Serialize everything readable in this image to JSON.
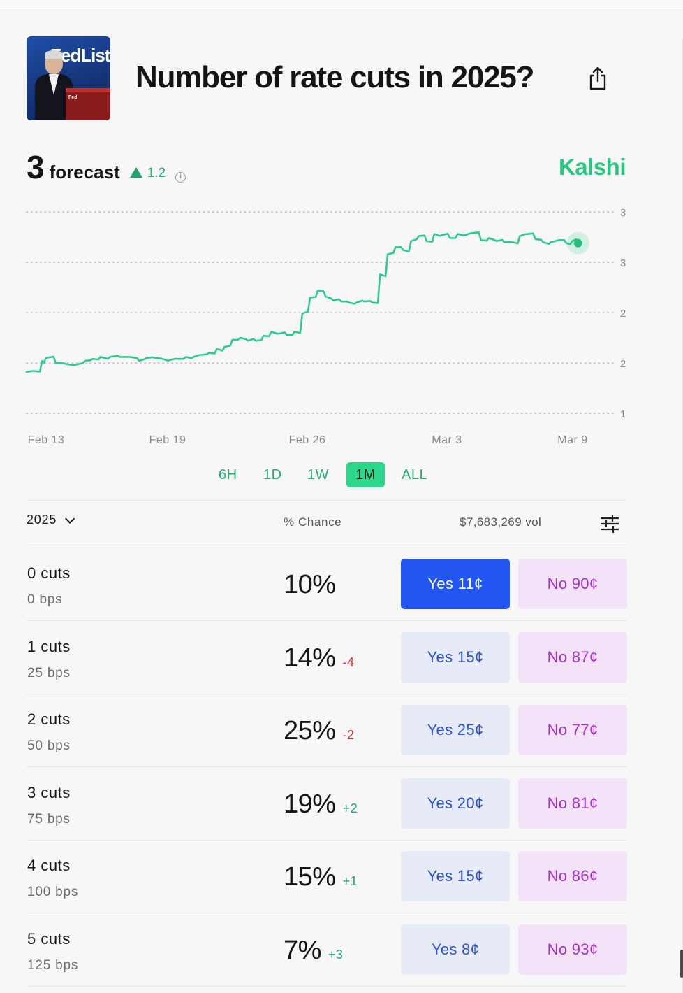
{
  "market": {
    "title": "Number of rate cuts in 2025?",
    "thumbnail_text": "FedListens",
    "thumbnail_podium_text": "Fed"
  },
  "forecast": {
    "value": "3",
    "label": "forecast",
    "delta": "1.2",
    "delta_direction": "up",
    "info_icon": "info-icon",
    "brand": "Kalshi"
  },
  "chart_data": {
    "type": "line",
    "title": "",
    "xlabel": "",
    "ylabel": "",
    "x_tick_labels": [
      "Feb 13",
      "Feb 19",
      "Feb 26",
      "Mar 3",
      "Mar 9"
    ],
    "y_tick_labels": [
      "3",
      "3",
      "2",
      "2",
      "1"
    ],
    "ylim": [
      1.0,
      3.0
    ],
    "grid": true,
    "line_color": "#2ecc8a",
    "series": [
      {
        "name": "forecast",
        "x_days": [
          0,
          0.3,
          0.8,
          1.0,
          1.5,
          2.0,
          2.5,
          3.0,
          3.4,
          3.8,
          4.3,
          4.8,
          5.3,
          5.8,
          6.2,
          6.6,
          7.0,
          7.4,
          7.8,
          8.2,
          8.6,
          9.0,
          9.4,
          9.8,
          10.2,
          10.6,
          11.0,
          11.4,
          11.8,
          12.2,
          12.6,
          13.0,
          13.4,
          13.8,
          14.2,
          14.6,
          15.0,
          15.4,
          15.8,
          16.2,
          16.6,
          17.0,
          17.4,
          17.8,
          18.2,
          18.6,
          19.0,
          19.4,
          19.8,
          20.2,
          20.6,
          21.0,
          21.4,
          21.8,
          22.2,
          22.6,
          23.0,
          23.4,
          23.8,
          24.2,
          24.6,
          25.0,
          25.4,
          25.8,
          26.2,
          26.6,
          27.0,
          27.4,
          27.8,
          28.1,
          28.4
        ],
        "values": [
          1.41,
          1.42,
          1.52,
          1.55,
          1.5,
          1.49,
          1.48,
          1.52,
          1.54,
          1.56,
          1.56,
          1.56,
          1.56,
          1.52,
          1.55,
          1.55,
          1.54,
          1.53,
          1.54,
          1.56,
          1.56,
          1.58,
          1.6,
          1.64,
          1.66,
          1.73,
          1.75,
          1.72,
          1.72,
          1.77,
          1.81,
          1.79,
          1.78,
          1.81,
          1.99,
          2.15,
          2.22,
          2.16,
          2.12,
          2.11,
          2.1,
          2.1,
          2.11,
          2.1,
          2.38,
          2.58,
          2.65,
          2.62,
          2.71,
          2.76,
          2.71,
          2.78,
          2.77,
          2.74,
          2.78,
          2.77,
          2.79,
          2.72,
          2.74,
          2.71,
          2.7,
          2.7,
          2.76,
          2.78,
          2.73,
          2.7,
          2.7,
          2.72,
          2.69,
          2.71,
          2.69
        ]
      }
    ]
  },
  "range_tabs": [
    {
      "label": "6H",
      "active": false
    },
    {
      "label": "1D",
      "active": false
    },
    {
      "label": "1W",
      "active": false
    },
    {
      "label": "1M",
      "active": true
    },
    {
      "label": "ALL",
      "active": false
    }
  ],
  "table": {
    "year": "2025",
    "chance_header": "% Chance",
    "volume": "$7,683,269 vol",
    "filter_icon": "sliders-icon",
    "rows": [
      {
        "name": "0 cuts",
        "bps": "0 bps",
        "chance": "10%",
        "change": "",
        "yes": "Yes 11¢",
        "no": "No 90¢",
        "yes_primary": true
      },
      {
        "name": "1 cuts",
        "bps": "25 bps",
        "chance": "14%",
        "change": "-4",
        "yes": "Yes 15¢",
        "no": "No 87¢",
        "yes_primary": false
      },
      {
        "name": "2 cuts",
        "bps": "50 bps",
        "chance": "25%",
        "change": "-2",
        "yes": "Yes 25¢",
        "no": "No 77¢",
        "yes_primary": false
      },
      {
        "name": "3 cuts",
        "bps": "75 bps",
        "chance": "19%",
        "change": "+2",
        "yes": "Yes 20¢",
        "no": "No 81¢",
        "yes_primary": false
      },
      {
        "name": "4 cuts",
        "bps": "100 bps",
        "chance": "15%",
        "change": "+1",
        "yes": "Yes 15¢",
        "no": "No 86¢",
        "yes_primary": false
      },
      {
        "name": "5 cuts",
        "bps": "125 bps",
        "chance": "7%",
        "change": "+3",
        "yes": "Yes 8¢",
        "no": "No 93¢",
        "yes_primary": false
      }
    ]
  },
  "colors": {
    "accent_green": "#2bd88b",
    "yes_primary": "#2356f0",
    "no_text": "#a42fd1",
    "negative": "#d2342c",
    "positive": "#1fa56a"
  }
}
